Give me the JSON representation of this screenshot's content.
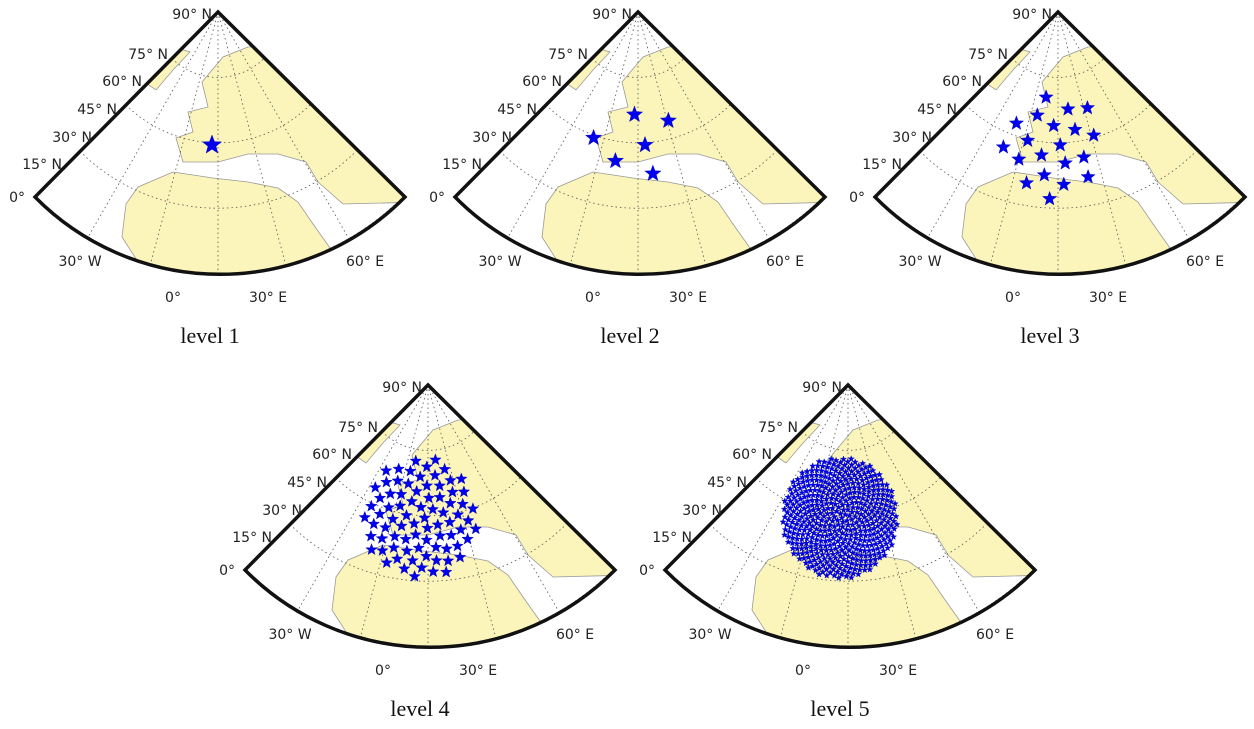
{
  "panels": [
    {
      "caption": "level 1",
      "lat_labels": [
        "90° N",
        "75° N",
        "60° N",
        "45° N",
        "30° N",
        "15° N",
        "0°"
      ],
      "lon_labels": [
        "30° W",
        "0°",
        "30° E",
        "60° E"
      ]
    },
    {
      "caption": "level 2",
      "lat_labels": [
        "90° N",
        "75° N",
        "60° N",
        "45° N",
        "30° N",
        "15° N",
        "0°"
      ],
      "lon_labels": [
        "30° W",
        "0°",
        "30° E",
        "60° E"
      ]
    },
    {
      "caption": "level 3",
      "lat_labels": [
        "90° N",
        "75° N",
        "60° N",
        "45° N",
        "30° N",
        "15° N",
        "0°"
      ],
      "lon_labels": [
        "30° W",
        "0°",
        "30° E",
        "60° E"
      ]
    },
    {
      "caption": "level 4",
      "lat_labels": [
        "90° N",
        "75° N",
        "60° N",
        "45° N",
        "30° N",
        "15° N",
        "0°"
      ],
      "lon_labels": [
        "30° W",
        "0°",
        "30° E",
        "60° E"
      ]
    },
    {
      "caption": "level 5",
      "lat_labels": [
        "90° N",
        "75° N",
        "60° N",
        "45° N",
        "30° N",
        "15° N",
        "0°"
      ],
      "lon_labels": [
        "30° W",
        "0°",
        "30° E",
        "60° E"
      ]
    }
  ]
}
